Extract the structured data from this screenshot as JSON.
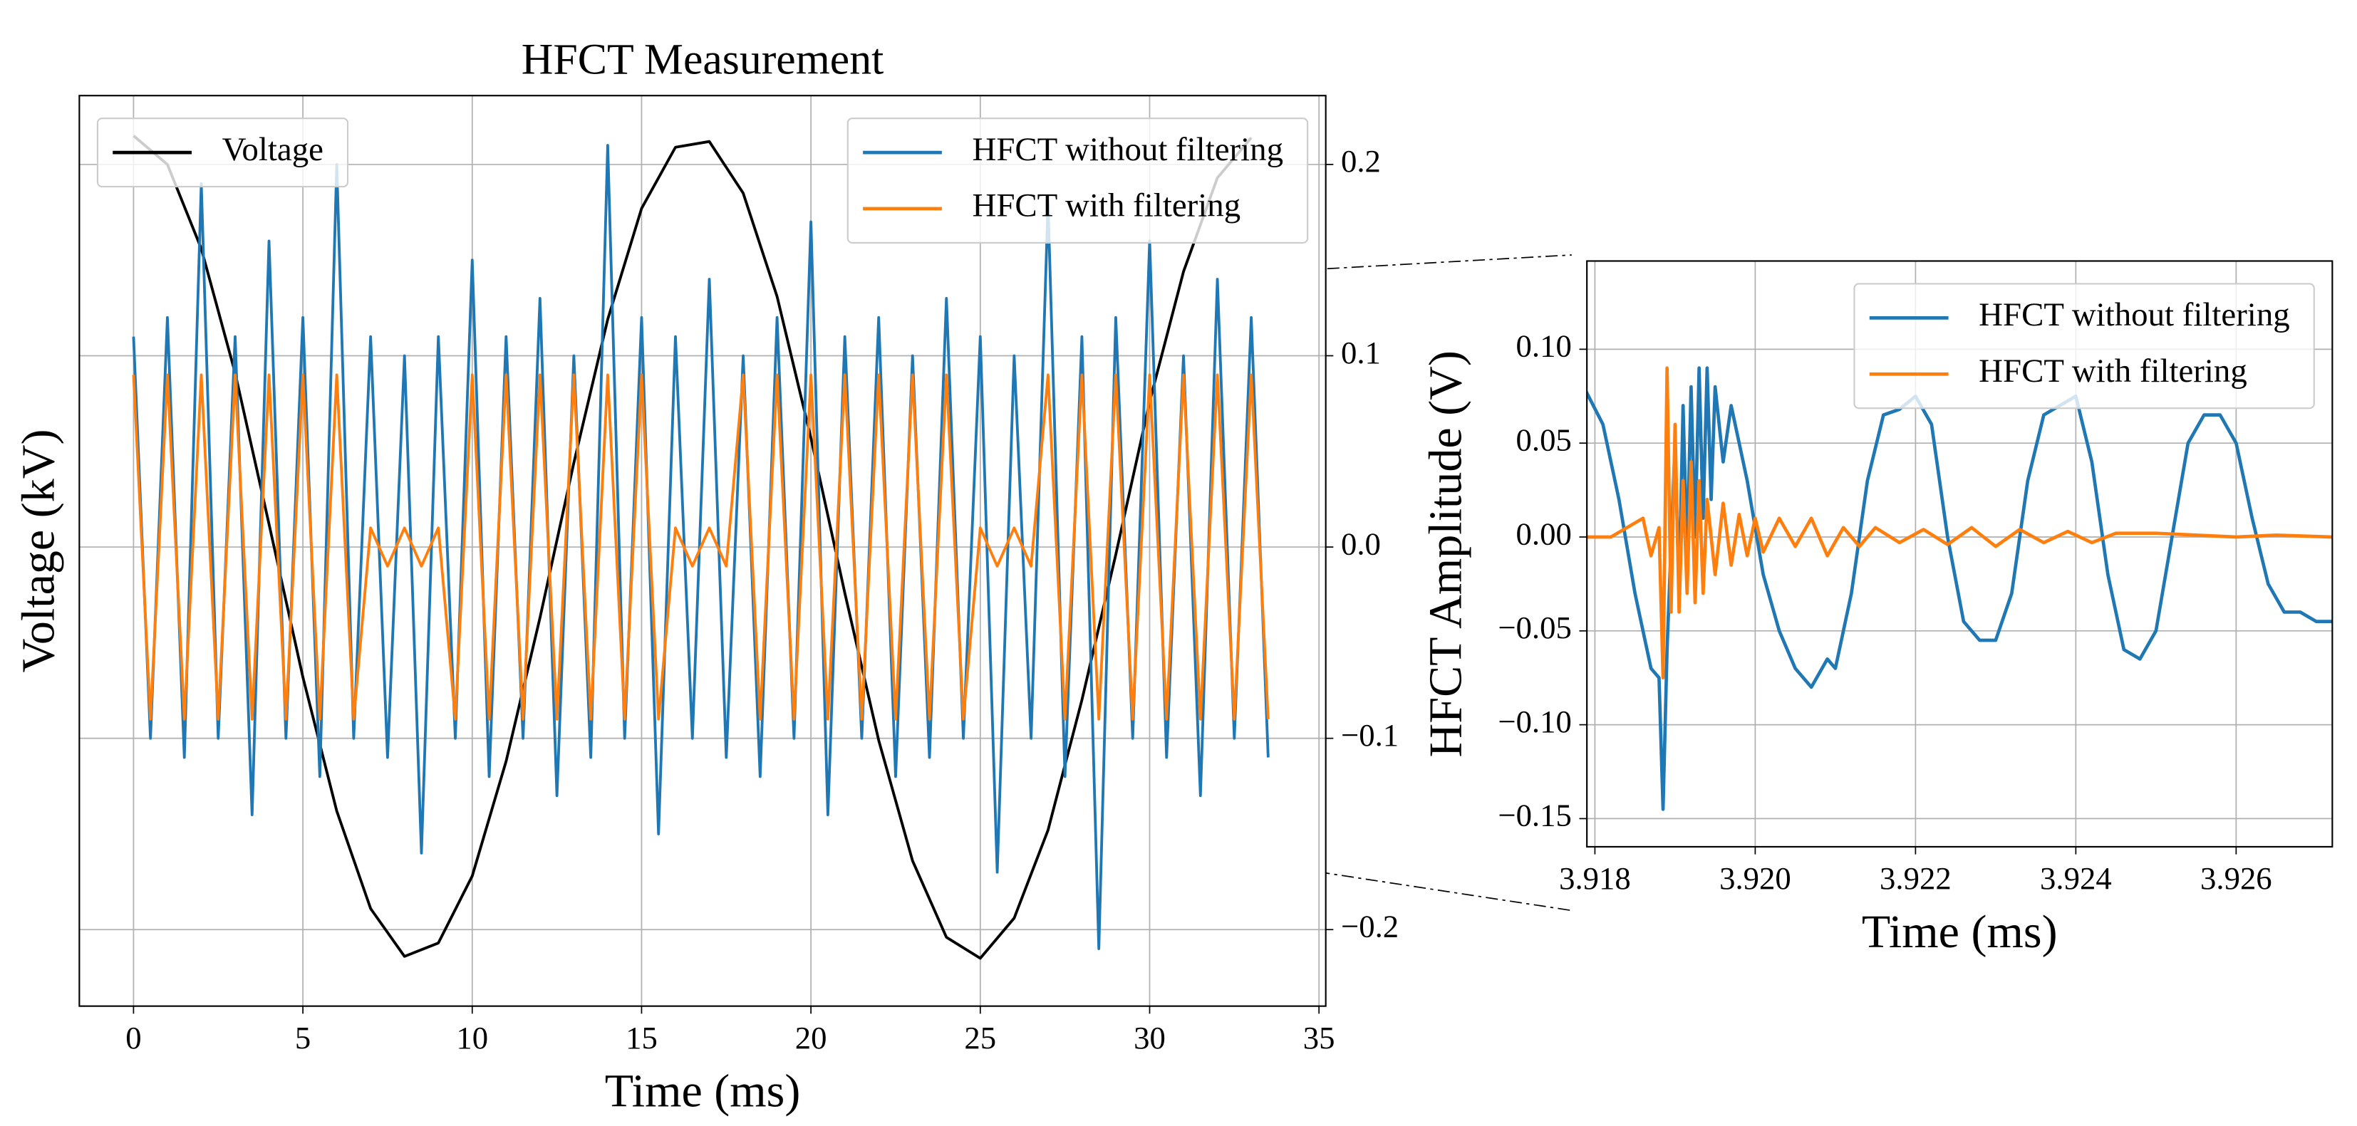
{
  "chart_data": [
    {
      "type": "line",
      "title": "HFCT Measurement",
      "x_label": "Time (ms)",
      "y_label": "Voltage (kV)",
      "xlim": [
        -1.6,
        35.2
      ],
      "xticks": [
        0,
        5,
        10,
        15,
        20,
        25,
        30,
        35
      ],
      "ylim": [
        -0.24,
        0.236
      ],
      "y2lim": [
        -0.24,
        0.236
      ],
      "y2ticks": [
        {
          "value": -0.2,
          "label": "−0.2"
        },
        {
          "value": -0.1,
          "label": "−0.1"
        },
        {
          "value": 0.0,
          "label": "0.0"
        },
        0.1,
        0.2
      ],
      "grid": true,
      "legend": "upper left",
      "y2_legend": "upper right",
      "x": [
        0,
        0.5,
        1,
        1.5,
        2,
        2.5,
        3,
        3.5,
        4,
        4.5,
        5,
        5.5,
        6,
        6.5,
        7,
        7.5,
        8,
        8.5,
        9,
        9.5,
        10,
        10.5,
        11,
        11.5,
        12,
        12.5,
        13,
        13.5,
        14,
        14.5,
        15,
        15.5,
        16,
        16.5,
        17,
        17.5,
        18,
        18.5,
        19,
        19.5,
        20,
        20.5,
        21,
        21.5,
        22,
        22.5,
        23,
        23.5,
        24,
        24.5,
        25,
        25.5,
        26,
        26.5,
        27,
        27.5,
        28,
        28.5,
        29,
        29.5,
        30,
        30.5,
        31,
        31.5,
        32,
        32.5,
        33,
        33.5
      ],
      "series": [
        {
          "name": "Voltage",
          "color": "#000000",
          "x": [
            0,
            1,
            2,
            3,
            4,
            5,
            6,
            7,
            8,
            9,
            10,
            11,
            12,
            13,
            14,
            15,
            16,
            17,
            18,
            19,
            20,
            21,
            22,
            23,
            24,
            25,
            26,
            27,
            28,
            29,
            30,
            31,
            32,
            33
          ],
          "values": [
            0.215,
            0.2,
            0.156,
            0.091,
            0.012,
            -0.068,
            -0.138,
            -0.189,
            -0.214,
            -0.207,
            -0.172,
            -0.112,
            -0.037,
            0.044,
            0.119,
            0.177,
            0.209,
            0.212,
            0.185,
            0.131,
            0.057,
            -0.024,
            -0.101,
            -0.164,
            -0.204,
            -0.215,
            -0.194,
            -0.148,
            -0.08,
            -0.004,
            0.076,
            0.144,
            0.193,
            0.214
          ]
        },
        {
          "name": "HFCT without filtering",
          "color": "#1f77b4",
          "axis": "y2",
          "values": [
            0.11,
            -0.1,
            0.12,
            -0.11,
            0.19,
            -0.1,
            0.11,
            -0.14,
            0.16,
            -0.1,
            0.12,
            -0.12,
            0.2,
            -0.1,
            0.11,
            -0.11,
            0.1,
            -0.16,
            0.11,
            -0.1,
            0.15,
            -0.12,
            0.11,
            -0.1,
            0.13,
            -0.13,
            0.1,
            -0.11,
            0.21,
            -0.1,
            0.12,
            -0.15,
            0.11,
            -0.1,
            0.14,
            -0.11,
            0.1,
            -0.12,
            0.12,
            -0.1,
            0.17,
            -0.14,
            0.11,
            -0.1,
            0.12,
            -0.12,
            0.1,
            -0.11,
            0.13,
            -0.1,
            0.11,
            -0.17,
            0.1,
            -0.1,
            0.18,
            -0.12,
            0.11,
            -0.21,
            0.12,
            -0.1,
            0.16,
            -0.11,
            0.1,
            -0.13,
            0.14,
            -0.1,
            0.12,
            -0.11
          ]
        },
        {
          "name": "HFCT with filtering",
          "color": "#ff7f0e",
          "axis": "y2",
          "values": [
            0.09,
            -0.09,
            0.09,
            -0.09,
            0.09,
            -0.09,
            0.09,
            -0.09,
            0.09,
            -0.09,
            0.09,
            -0.09,
            0.09,
            -0.09,
            0.01,
            -0.01,
            0.01,
            -0.01,
            0.01,
            -0.09,
            0.09,
            -0.09,
            0.09,
            -0.09,
            0.09,
            -0.09,
            0.09,
            -0.09,
            0.09,
            -0.09,
            0.09,
            -0.09,
            0.01,
            -0.01,
            0.01,
            -0.01,
            0.09,
            -0.09,
            0.09,
            -0.09,
            0.09,
            -0.09,
            0.09,
            -0.09,
            0.09,
            -0.09,
            0.09,
            -0.09,
            0.09,
            -0.09,
            0.01,
            -0.01,
            0.01,
            -0.01,
            0.09,
            -0.09,
            0.09,
            -0.09,
            0.09,
            -0.09,
            0.09,
            -0.09,
            0.09,
            -0.09,
            0.09,
            -0.09,
            0.09,
            -0.09
          ]
        }
      ]
    },
    {
      "type": "line",
      "x_label": "Time (ms)",
      "y_label": "HFCT Amplitude (V)",
      "xlim": [
        3.9179,
        3.9272
      ],
      "xticks": [
        3.918,
        {
          "value": 3.92,
          "label": "3.920"
        },
        3.922,
        3.924,
        3.926
      ],
      "ylim": [
        -0.165,
        0.147
      ],
      "yticks": [
        {
          "value": -0.15,
          "label": "−0.15"
        },
        {
          "value": -0.1,
          "label": "−0.10"
        },
        {
          "value": -0.05,
          "label": "−0.05"
        },
        {
          "value": 0.0,
          "label": "0.00"
        },
        {
          "value": 0.05,
          "label": "0.05"
        },
        {
          "value": 0.1,
          "label": "0.10"
        }
      ],
      "grid": true,
      "legend": "upper right",
      "series": [
        {
          "name": "HFCT without filtering",
          "color": "#1f77b4",
          "x": [
            3.9178,
            3.9181,
            3.9183,
            3.9185,
            3.9187,
            3.9188,
            3.91885,
            3.9189,
            3.919,
            3.91905,
            3.9191,
            3.91915,
            3.9192,
            3.91925,
            3.9193,
            3.91935,
            3.9194,
            3.91945,
            3.9195,
            3.9196,
            3.9197,
            3.9199,
            3.9201,
            3.9203,
            3.9205,
            3.9207,
            3.9209,
            3.921,
            3.9212,
            3.9214,
            3.9216,
            3.9218,
            3.922,
            3.9222,
            3.9224,
            3.9226,
            3.9228,
            3.923,
            3.9232,
            3.9234,
            3.9236,
            3.9238,
            3.924,
            3.9242,
            3.9244,
            3.9246,
            3.9248,
            3.925,
            3.9252,
            3.9254,
            3.9256,
            3.9258,
            3.926,
            3.9262,
            3.9264,
            3.9266,
            3.9268,
            3.927,
            3.9272
          ],
          "values": [
            0.085,
            0.06,
            0.02,
            -0.03,
            -0.07,
            -0.075,
            -0.145,
            -0.06,
            0.05,
            -0.03,
            0.07,
            -0.01,
            0.08,
            0.0,
            0.09,
            0.01,
            0.09,
            0.02,
            0.08,
            0.04,
            0.07,
            0.03,
            -0.02,
            -0.05,
            -0.07,
            -0.08,
            -0.065,
            -0.07,
            -0.03,
            0.03,
            0.065,
            0.068,
            0.075,
            0.06,
            0.0,
            -0.045,
            -0.055,
            -0.055,
            -0.03,
            0.03,
            0.065,
            0.07,
            0.075,
            0.04,
            -0.02,
            -0.06,
            -0.065,
            -0.05,
            0.0,
            0.05,
            0.065,
            0.065,
            0.05,
            0.01,
            -0.025,
            -0.04,
            -0.04,
            -0.045,
            -0.045
          ]
        },
        {
          "name": "HFCT with filtering",
          "color": "#ff7f0e",
          "x": [
            3.9178,
            3.9182,
            3.9186,
            3.9187,
            3.9188,
            3.91885,
            3.9189,
            3.91895,
            3.919,
            3.91905,
            3.9191,
            3.91915,
            3.9192,
            3.91925,
            3.9193,
            3.91935,
            3.9194,
            3.9195,
            3.9196,
            3.9197,
            3.9198,
            3.9199,
            3.92,
            3.9201,
            3.9203,
            3.9205,
            3.9207,
            3.9209,
            3.9211,
            3.9213,
            3.9215,
            3.9218,
            3.9221,
            3.9224,
            3.9227,
            3.923,
            3.9233,
            3.9236,
            3.9239,
            3.9242,
            3.9245,
            3.925,
            3.9255,
            3.926,
            3.9265,
            3.9272
          ],
          "values": [
            0.0,
            0.0,
            0.01,
            -0.01,
            0.005,
            -0.075,
            0.09,
            -0.04,
            0.06,
            -0.04,
            0.03,
            -0.03,
            0.04,
            -0.035,
            0.03,
            -0.03,
            0.02,
            -0.02,
            0.018,
            -0.015,
            0.012,
            -0.01,
            0.01,
            -0.008,
            0.01,
            -0.005,
            0.01,
            -0.01,
            0.005,
            -0.005,
            0.005,
            -0.003,
            0.004,
            -0.004,
            0.005,
            -0.005,
            0.004,
            -0.003,
            0.003,
            -0.003,
            0.002,
            0.002,
            0.001,
            0.0,
            0.001,
            0.0
          ]
        }
      ]
    }
  ]
}
